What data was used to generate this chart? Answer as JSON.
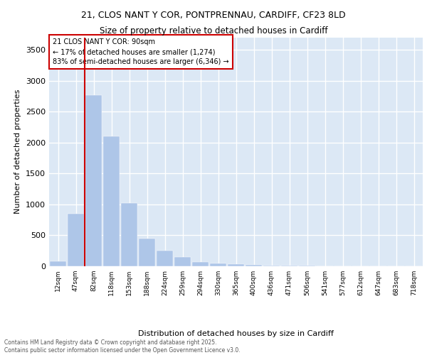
{
  "title_line1": "21, CLOS NANT Y COR, PONTPRENNAU, CARDIFF, CF23 8LD",
  "title_line2": "Size of property relative to detached houses in Cardiff",
  "xlabel": "Distribution of detached houses by size in Cardiff",
  "ylabel": "Number of detached properties",
  "categories": [
    "12sqm",
    "47sqm",
    "82sqm",
    "118sqm",
    "153sqm",
    "188sqm",
    "224sqm",
    "259sqm",
    "294sqm",
    "330sqm",
    "365sqm",
    "400sqm",
    "436sqm",
    "471sqm",
    "506sqm",
    "541sqm",
    "577sqm",
    "612sqm",
    "647sqm",
    "683sqm",
    "718sqm"
  ],
  "values": [
    75,
    850,
    2760,
    2100,
    1020,
    450,
    250,
    145,
    70,
    45,
    35,
    20,
    15,
    10,
    8,
    5,
    4,
    3,
    2,
    2,
    1
  ],
  "bar_color": "#aec6e8",
  "bar_edge_color": "#aec6e8",
  "vline_x": 1.5,
  "vline_color": "#cc0000",
  "annotation_title": "21 CLOS NANT Y COR: 90sqm",
  "annotation_line2": "← 17% of detached houses are smaller (1,274)",
  "annotation_line3": "83% of semi-detached houses are larger (6,346) →",
  "annotation_box_color": "#ffffff",
  "annotation_box_edge_color": "#cc0000",
  "ylim": [
    0,
    3700
  ],
  "yticks": [
    0,
    500,
    1000,
    1500,
    2000,
    2500,
    3000,
    3500
  ],
  "background_color": "#dce8f5",
  "grid_color": "#ffffff",
  "footer_line1": "Contains HM Land Registry data © Crown copyright and database right 2025.",
  "footer_line2": "Contains public sector information licensed under the Open Government Licence v3.0."
}
